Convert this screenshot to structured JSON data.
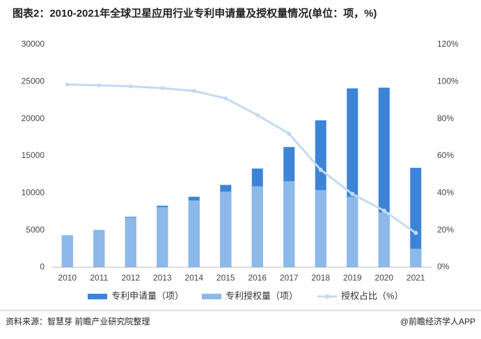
{
  "chart_data": {
    "type": "bar",
    "title": "图表2：2010-2021年全球卫星应用行业专利申请量及授权量情况(单位：项，%)",
    "source": "资料来源：智慧芽 前瞻产业研究院整理",
    "credit": "@前瞻经济学人APP",
    "categories": [
      "2010",
      "2011",
      "2012",
      "2013",
      "2014",
      "2015",
      "2016",
      "2017",
      "2018",
      "2019",
      "2020",
      "2021"
    ],
    "series": [
      {
        "name": "专利申请量（项）",
        "color": "#3d84d8",
        "values": [
          4300,
          5000,
          6800,
          8300,
          9500,
          11100,
          13300,
          16200,
          19800,
          24100,
          24200,
          13400
        ]
      },
      {
        "name": "专利授权量（项）",
        "color": "#8db9ea",
        "values": [
          4300,
          4950,
          6700,
          8100,
          9000,
          10200,
          10900,
          11600,
          10400,
          9500,
          7400,
          2500
        ]
      },
      {
        "name": "授权占比（%）",
        "color": "#c3daf3",
        "axis": "y2",
        "values": [
          98.5,
          98,
          97.5,
          96.5,
          95,
          91,
          82,
          72,
          52.5,
          39.5,
          30.5,
          18.5
        ]
      }
    ],
    "ylim": [
      0,
      30000
    ],
    "yticks": [
      0,
      5000,
      10000,
      15000,
      20000,
      25000,
      30000
    ],
    "y2lim": [
      0,
      120
    ],
    "y2ticks": [
      {
        "value": 0,
        "label": "0%"
      },
      {
        "value": 20,
        "label": "20%"
      },
      {
        "value": 40,
        "label": "40%"
      },
      {
        "value": 60,
        "label": "60%"
      },
      {
        "value": 80,
        "label": "80%"
      },
      {
        "value": 100,
        "label": "100%"
      },
      {
        "value": 120,
        "label": "120%"
      }
    ]
  }
}
